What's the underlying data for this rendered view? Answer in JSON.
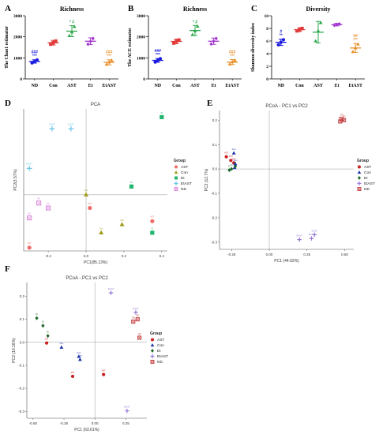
{
  "figure": {
    "panels": [
      {
        "letter": "A"
      },
      {
        "letter": "B"
      },
      {
        "letter": "C"
      },
      {
        "letter": "D"
      },
      {
        "letter": "E"
      },
      {
        "letter": "F"
      }
    ]
  },
  "colors": {
    "ND": "#1a1adf",
    "Con": "#e23a3a",
    "AST": "#2fa84f",
    "Et": "#a43ad0",
    "EtAST": "#e8922f",
    "pca_AST": "#ef6b6b",
    "pca_Con": "#9c9a12",
    "pca_Et": "#22b56f",
    "pca_EtAST": "#69c4e6",
    "pca_ND": "#d883d8",
    "pcoa_AST": "#c91f1f",
    "pcoa_Con": "#1a2fa8",
    "pcoa_Et": "#1c6a2c",
    "pcoa_EtAST": "#9a79d6",
    "pcoa_ND": "#c23a3a"
  },
  "chart_data": [
    {
      "type": "scatter",
      "panel": "A",
      "title": "Richness",
      "ylabel": "The Chao1 estimator",
      "ylim": [
        0,
        3000
      ],
      "yticks": [
        "0",
        "1000",
        "2000",
        "3000"
      ],
      "categories": [
        "ND",
        "Con",
        "AST",
        "Et",
        "EtAST"
      ],
      "means": [
        830,
        1720,
        2270,
        1790,
        790
      ],
      "sd": [
        80,
        110,
        260,
        160,
        120
      ],
      "points": [
        [
          760,
          830,
          900
        ],
        [
          1650,
          1720,
          1800
        ],
        [
          2050,
          2230,
          2480
        ],
        [
          1650,
          1780,
          1920
        ],
        [
          690,
          800,
          880
        ]
      ],
      "annotations": [
        {
          "category": "ND",
          "lines": [
            "###",
            "***"
          ]
        },
        {
          "category": "AST",
          "lines": [
            "* #"
          ]
        },
        {
          "category": "EtAST",
          "lines": [
            "###",
            "***"
          ]
        }
      ]
    },
    {
      "type": "scatter",
      "panel": "B",
      "title": "Richness",
      "ylabel": "The ACE estimator",
      "ylim": [
        0,
        3000
      ],
      "yticks": [
        "0",
        "1000",
        "2000",
        "3000"
      ],
      "categories": [
        "ND",
        "Con",
        "AST",
        "Et",
        "EtAST"
      ],
      "means": [
        880,
        1780,
        2300,
        1790,
        800
      ],
      "sd": [
        90,
        110,
        240,
        150,
        120
      ],
      "points": [
        [
          800,
          880,
          960
        ],
        [
          1700,
          1790,
          1850
        ],
        [
          2100,
          2280,
          2500
        ],
        [
          1660,
          1790,
          1920
        ],
        [
          700,
          810,
          890
        ]
      ],
      "annotations": [
        {
          "category": "ND",
          "lines": [
            "###",
            "***"
          ]
        },
        {
          "category": "AST",
          "lines": [
            "* #"
          ]
        },
        {
          "category": "EtAST",
          "lines": [
            "###",
            "***"
          ]
        }
      ]
    },
    {
      "type": "scatter",
      "panel": "C",
      "title": "Diversity",
      "ylabel": "Shannon diversity index",
      "ylim": [
        0,
        10
      ],
      "yticks": [
        "0",
        "2",
        "4",
        "6",
        "8",
        "10"
      ],
      "categories": [
        "ND",
        "Con",
        "AST",
        "Et",
        "EtAST"
      ],
      "means": [
        5.8,
        7.8,
        7.4,
        8.6,
        4.9
      ],
      "sd": [
        0.5,
        0.3,
        1.7,
        0.2,
        0.7
      ],
      "points": [
        [
          5.4,
          5.8,
          6.2
        ],
        [
          7.6,
          7.8,
          8.0
        ],
        [
          6.0,
          7.6,
          8.9
        ],
        [
          8.5,
          8.6,
          8.7
        ],
        [
          4.3,
          4.9,
          5.5
        ]
      ],
      "annotations": [
        {
          "category": "ND",
          "lines": [
            "#",
            "**"
          ]
        },
        {
          "category": "EtAST",
          "lines": [
            "##",
            "***"
          ]
        }
      ]
    },
    {
      "type": "scatter",
      "panel": "D",
      "title": "PCA",
      "xlabel": "PC1(85.13%)",
      "ylabel": "PC2(3.57%)",
      "xlim": [
        -0.33,
        0.43
      ],
      "ylim": [
        -0.34,
        0.52
      ],
      "xticks": [
        -0.2,
        0,
        0.2,
        0.4
      ],
      "xtick_labels": [
        "-0.2",
        "0.0",
        "0.2",
        "0.4"
      ],
      "legend_title": "Group",
      "legend_position": "right",
      "series": [
        {
          "name": "AST",
          "marker": "circle",
          "color_key": "pca_AST",
          "x": [
            -0.3,
            0.02,
            0.35
          ],
          "y": [
            -0.32,
            -0.08,
            -0.16
          ]
        },
        {
          "name": "Con",
          "marker": "triangle",
          "color_key": "pca_Con",
          "x": [
            0.0,
            0.08,
            0.19
          ],
          "y": [
            0.0,
            -0.23,
            -0.18
          ]
        },
        {
          "name": "Et",
          "marker": "square",
          "color_key": "pca_Et",
          "x": [
            0.24,
            0.4,
            0.35
          ],
          "y": [
            0.05,
            0.47,
            -0.23
          ]
        },
        {
          "name": "EtAST",
          "marker": "plus",
          "color_key": "pca_EtAST",
          "x": [
            -0.3,
            -0.18,
            -0.08
          ],
          "y": [
            0.16,
            0.4,
            0.4
          ]
        },
        {
          "name": "ND",
          "marker": "open-square",
          "color_key": "pca_ND",
          "x": [
            -0.3,
            -0.25,
            -0.2
          ],
          "y": [
            -0.14,
            -0.05,
            -0.08
          ]
        }
      ]
    },
    {
      "type": "scatter",
      "panel": "E",
      "title": "PCoA - PC1 vs PC2",
      "xlabel": "PC1 (44.02%)",
      "ylabel": "PC2 (12.7%)",
      "xlim": [
        -0.33,
        0.56
      ],
      "ylim": [
        -0.33,
        0.24
      ],
      "xticks": [
        -0.25,
        0,
        0.25,
        0.5
      ],
      "xtick_labels": [
        "-0.25",
        "0.00",
        "0.25",
        "0.50"
      ],
      "yticks": [
        -0.3,
        -0.2,
        -0.1,
        0,
        0.1,
        0.2
      ],
      "ytick_labels": [
        "-0.3",
        "-0.2",
        "-0.1",
        "0.0",
        "0.1",
        "0.2"
      ],
      "legend_title": "Group",
      "legend_position": "right",
      "series": [
        {
          "name": "AST",
          "marker": "circle",
          "color_key": "pcoa_AST",
          "x": [
            -0.285,
            -0.255,
            -0.235
          ],
          "y": [
            0.05,
            0.035,
            0.025
          ]
        },
        {
          "name": "Con",
          "marker": "triangle",
          "color_key": "pcoa_Con",
          "x": [
            -0.235,
            -0.225,
            -0.23
          ],
          "y": [
            0.065,
            0.02,
            0.005
          ]
        },
        {
          "name": "Et",
          "marker": "diamond",
          "color_key": "pcoa_Et",
          "x": [
            -0.265,
            -0.25,
            -0.225
          ],
          "y": [
            -0.005,
            0.0,
            0.01
          ]
        },
        {
          "name": "EtAST",
          "marker": "plus",
          "color_key": "pcoa_EtAST",
          "x": [
            0.2,
            0.28,
            0.3
          ],
          "y": [
            -0.29,
            -0.285,
            -0.27
          ]
        },
        {
          "name": "ND",
          "marker": "open-square",
          "color_key": "pcoa_ND",
          "x": [
            0.47,
            0.48,
            0.495
          ],
          "y": [
            0.195,
            0.205,
            0.2
          ]
        }
      ]
    },
    {
      "type": "scatter",
      "panel": "F",
      "title": "PCoA - PC1 vs PC2",
      "xlabel": "PC1 (63.61%)",
      "ylabel": "PC2 (10.16%)",
      "xlim": [
        -0.55,
        0.42
      ],
      "ylim": [
        -0.33,
        0.26
      ],
      "xticks": [
        -0.5,
        -0.25,
        0,
        0.25
      ],
      "xtick_labels": [
        "-0.50",
        "-0.25",
        "0.00",
        "0.25"
      ],
      "yticks": [
        -0.3,
        -0.2,
        -0.1,
        0,
        0.1,
        0.2
      ],
      "ytick_labels": [
        "-0.3",
        "-0.2",
        "-0.1",
        "0.0",
        "0.1",
        "0.2"
      ],
      "legend_title": "Group",
      "legend_position": "right",
      "series": [
        {
          "name": "AST",
          "marker": "circle",
          "color_key": "pcoa_AST",
          "x": [
            -0.39,
            -0.18,
            0.07
          ],
          "y": [
            -0.003,
            -0.148,
            -0.14
          ]
        },
        {
          "name": "Con",
          "marker": "triangle",
          "color_key": "pcoa_Con",
          "x": [
            -0.27,
            -0.13,
            -0.12
          ],
          "y": [
            -0.022,
            -0.062,
            -0.075
          ]
        },
        {
          "name": "Et",
          "marker": "diamond",
          "color_key": "pcoa_Et",
          "x": [
            -0.47,
            -0.42,
            -0.38
          ],
          "y": [
            0.105,
            0.072,
            0.028
          ]
        },
        {
          "name": "EtAST",
          "marker": "plus",
          "color_key": "pcoa_EtAST",
          "x": [
            0.13,
            0.33,
            0.26
          ],
          "y": [
            0.215,
            0.13,
            -0.298
          ]
        },
        {
          "name": "ND",
          "marker": "open-square",
          "color_key": "pcoa_ND",
          "x": [
            0.31,
            0.345,
            0.36
          ],
          "y": [
            0.09,
            0.1,
            0.02
          ]
        }
      ]
    }
  ]
}
